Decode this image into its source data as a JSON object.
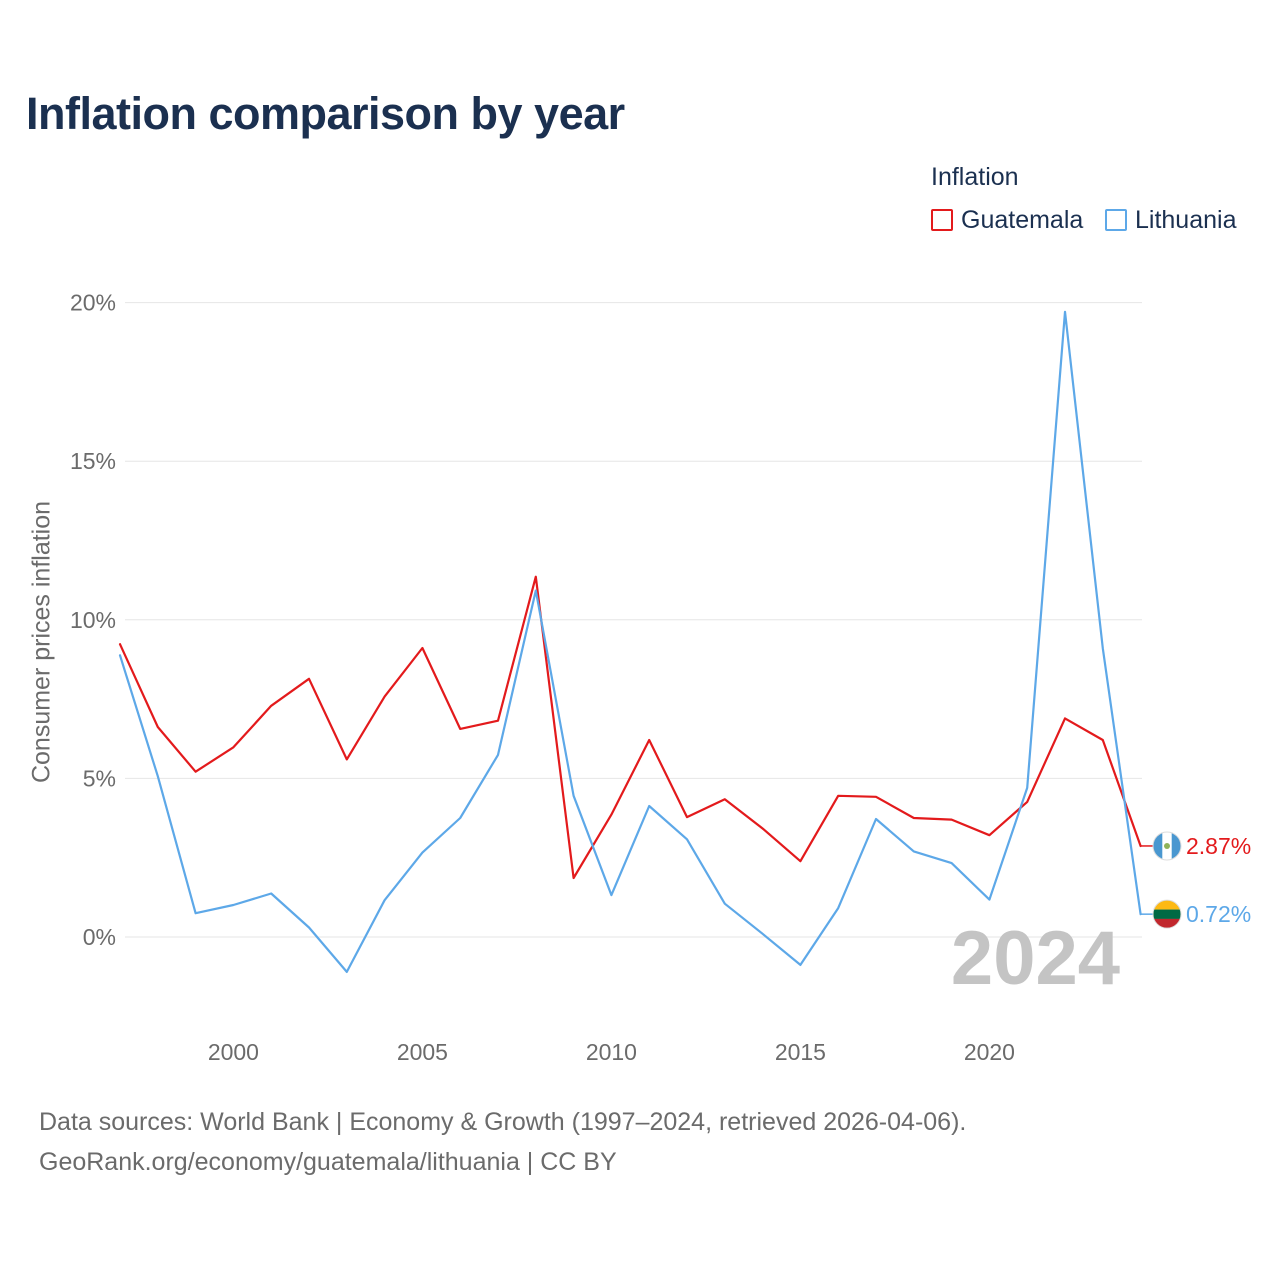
{
  "title": "Inflation comparison by year",
  "legend": {
    "title": "Inflation",
    "items": [
      {
        "name": "Guatemala",
        "color": "#e31a1c"
      },
      {
        "name": "Lithuania",
        "color": "#5da8e8"
      }
    ]
  },
  "watermark_year": "2024",
  "footer": {
    "line1": "Data sources: World Bank | Economy & Growth (1997–2024, retrieved 2026-04-06).",
    "line2": "GeoRank.org/economy/guatemala/lithuania | CC BY"
  },
  "chart_data": {
    "type": "line",
    "title": "Inflation comparison by year",
    "xlabel": "",
    "ylabel": "Consumer prices inflation",
    "xlim": [
      1997,
      2024
    ],
    "ylim": [
      -2.5,
      20
    ],
    "yticks": [
      0,
      5,
      10,
      15,
      20
    ],
    "ytick_labels": [
      "0%",
      "5%",
      "10%",
      "15%",
      "20%"
    ],
    "xticks": [
      2000,
      2005,
      2010,
      2015,
      2020
    ],
    "xtick_labels": [
      "2000",
      "2005",
      "2010",
      "2015",
      "2020"
    ],
    "grid": true,
    "legend_position": "top-right",
    "x": [
      1997,
      1998,
      1999,
      2000,
      2001,
      2002,
      2003,
      2004,
      2005,
      2006,
      2007,
      2008,
      2009,
      2010,
      2011,
      2012,
      2013,
      2014,
      2015,
      2016,
      2017,
      2018,
      2019,
      2020,
      2021,
      2022,
      2023,
      2024
    ],
    "series": [
      {
        "name": "Guatemala",
        "color": "#e31a1c",
        "end_label": "2.87%",
        "values": [
          9.23,
          6.62,
          5.21,
          5.98,
          7.29,
          8.14,
          5.6,
          7.58,
          9.11,
          6.56,
          6.82,
          11.36,
          1.86,
          3.86,
          6.21,
          3.78,
          4.34,
          3.42,
          2.39,
          4.45,
          4.42,
          3.75,
          3.7,
          3.21,
          4.26,
          6.89,
          6.21,
          2.87
        ]
      },
      {
        "name": "Lithuania",
        "color": "#5da8e8",
        "end_label": "0.72%",
        "values": [
          8.88,
          5.07,
          0.75,
          1.01,
          1.37,
          0.3,
          -1.1,
          1.16,
          2.66,
          3.75,
          5.74,
          10.92,
          4.45,
          1.32,
          4.13,
          3.08,
          1.05,
          0.1,
          -0.88,
          0.91,
          3.72,
          2.7,
          2.33,
          1.18,
          4.7,
          19.71,
          9.1,
          0.72
        ]
      }
    ]
  }
}
